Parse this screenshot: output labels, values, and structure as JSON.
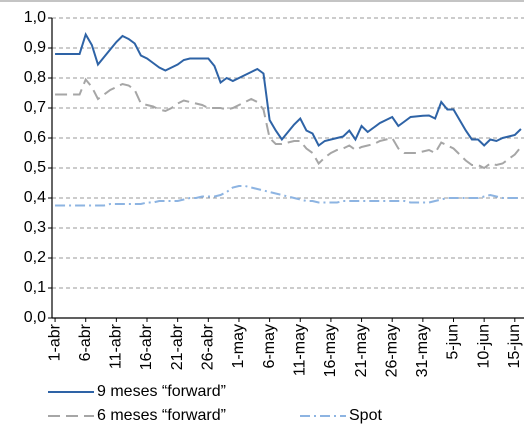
{
  "chart_data": {
    "type": "line",
    "categories": [
      "1-abr",
      null,
      null,
      null,
      null,
      "6-abr",
      null,
      null,
      null,
      null,
      "11-abr",
      null,
      null,
      null,
      null,
      "16-abr",
      null,
      null,
      null,
      null,
      "21-abr",
      null,
      null,
      null,
      null,
      "26-abr",
      null,
      null,
      null,
      null,
      "1-may",
      null,
      null,
      null,
      null,
      "6-may",
      null,
      null,
      null,
      null,
      "11-may",
      null,
      null,
      null,
      null,
      "16-may",
      null,
      null,
      null,
      null,
      "21-may",
      null,
      null,
      null,
      null,
      "26-may",
      null,
      null,
      null,
      null,
      "31-may",
      null,
      null,
      null,
      null,
      "5-jun",
      null,
      null,
      null,
      null,
      "10-jun",
      null,
      null,
      null,
      null,
      "15-jun",
      null
    ],
    "series": [
      {
        "name": "9 meses “forward”",
        "color": "#2e63a6",
        "dash": "solid",
        "values": [
          0.88,
          0.88,
          0.88,
          0.88,
          0.88,
          0.945,
          0.91,
          0.845,
          0.87,
          0.895,
          0.92,
          0.94,
          0.93,
          0.915,
          0.875,
          0.865,
          0.85,
          0.835,
          0.825,
          0.835,
          0.845,
          0.86,
          0.865,
          0.865,
          0.865,
          0.865,
          0.84,
          0.785,
          0.8,
          0.79,
          0.8,
          0.81,
          0.82,
          0.83,
          0.815,
          0.66,
          0.625,
          0.595,
          0.62,
          0.645,
          0.665,
          0.625,
          0.615,
          0.575,
          0.59,
          0.595,
          0.6,
          0.605,
          0.625,
          0.595,
          0.64,
          0.62,
          0.635,
          0.65,
          0.66,
          0.67,
          0.64,
          0.655,
          0.67,
          0.672,
          0.674,
          0.675,
          0.665,
          0.72,
          0.695,
          0.695,
          0.66,
          0.625,
          0.595,
          0.595,
          0.575,
          0.595,
          0.59,
          0.6,
          0.605,
          0.61,
          0.63
        ]
      },
      {
        "name": "6 meses “forward”",
        "color": "#a6a6a6",
        "dash": "dashed",
        "values": [
          0.745,
          0.745,
          0.745,
          0.745,
          0.745,
          0.795,
          0.77,
          0.73,
          0.745,
          0.76,
          0.77,
          0.78,
          0.775,
          0.76,
          0.715,
          0.71,
          0.705,
          0.695,
          0.69,
          0.7,
          0.715,
          0.725,
          0.72,
          0.715,
          0.71,
          0.7,
          0.7,
          0.7,
          0.695,
          0.7,
          0.71,
          0.72,
          0.73,
          0.72,
          0.695,
          0.6,
          0.58,
          0.58,
          0.585,
          0.59,
          0.59,
          0.565,
          0.55,
          0.515,
          0.535,
          0.55,
          0.56,
          0.565,
          0.575,
          0.56,
          0.57,
          0.575,
          0.58,
          0.59,
          0.595,
          0.6,
          0.565,
          0.55,
          0.55,
          0.55,
          0.555,
          0.56,
          0.55,
          0.585,
          0.575,
          0.565,
          0.545,
          0.525,
          0.51,
          0.51,
          0.5,
          0.515,
          0.51,
          0.515,
          0.53,
          0.545,
          0.57
        ]
      },
      {
        "name": "Spot",
        "color": "#8db4e2",
        "dash": "dashdot",
        "values": [
          0.375,
          0.375,
          0.375,
          0.375,
          0.375,
          0.375,
          0.375,
          0.375,
          0.375,
          0.38,
          0.38,
          0.38,
          0.38,
          0.38,
          0.38,
          0.385,
          0.385,
          0.39,
          0.39,
          0.39,
          0.39,
          0.395,
          0.4,
          0.4,
          0.405,
          0.405,
          0.405,
          0.41,
          0.42,
          0.435,
          0.44,
          0.44,
          0.435,
          0.43,
          0.425,
          0.42,
          0.415,
          0.41,
          0.405,
          0.4,
          0.395,
          0.39,
          0.39,
          0.385,
          0.385,
          0.385,
          0.385,
          0.39,
          0.39,
          0.39,
          0.39,
          0.39,
          0.39,
          0.39,
          0.39,
          0.39,
          0.39,
          0.39,
          0.385,
          0.385,
          0.385,
          0.385,
          0.39,
          0.395,
          0.4,
          0.4,
          0.4,
          0.4,
          0.4,
          0.4,
          0.405,
          0.41,
          0.405,
          0.4,
          0.4,
          0.4,
          0.4
        ]
      }
    ],
    "ylim": [
      0,
      1
    ],
    "yticks": [
      {
        "value": 0,
        "label": "0,0"
      },
      {
        "value": 0.1,
        "label": "0,1"
      },
      {
        "value": 0.2,
        "label": "0,2"
      },
      {
        "value": 0.3,
        "label": "0,3"
      },
      {
        "value": 0.4,
        "label": "0,4"
      },
      {
        "value": 0.5,
        "label": "0,5"
      },
      {
        "value": 0.6,
        "label": "0,6"
      },
      {
        "value": 0.7,
        "label": "0,7"
      },
      {
        "value": 0.8,
        "label": "0,8"
      },
      {
        "value": 0.9,
        "label": "0,9"
      },
      {
        "value": 1,
        "label": "1,0"
      }
    ],
    "grid": true
  }
}
